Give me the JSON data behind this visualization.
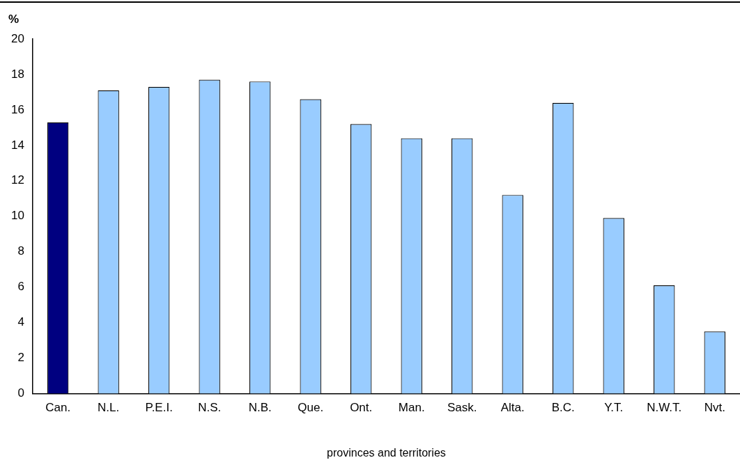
{
  "chart_data": {
    "type": "bar",
    "ylabel": "%",
    "xlabel": "provinces and territories",
    "categories": [
      "Can.",
      "N.L.",
      "P.E.I.",
      "N.S.",
      "N.B.",
      "Que.",
      "Ont.",
      "Man.",
      "Sask.",
      "Alta.",
      "B.C.",
      "Y.T.",
      "N.W.T.",
      "Nvt."
    ],
    "values": [
      15.3,
      17.1,
      17.3,
      17.7,
      17.6,
      16.6,
      15.2,
      14.4,
      14.4,
      11.2,
      16.4,
      9.9,
      6.1,
      3.5
    ],
    "colors": [
      "#000080",
      "#99ccff",
      "#99ccff",
      "#99ccff",
      "#99ccff",
      "#99ccff",
      "#99ccff",
      "#99ccff",
      "#99ccff",
      "#99ccff",
      "#99ccff",
      "#99ccff",
      "#99ccff",
      "#99ccff"
    ],
    "ylim": [
      0,
      20
    ],
    "yticks": [
      0,
      2,
      4,
      6,
      8,
      10,
      12,
      14,
      16,
      18,
      20
    ],
    "grid": false,
    "legend": false
  }
}
